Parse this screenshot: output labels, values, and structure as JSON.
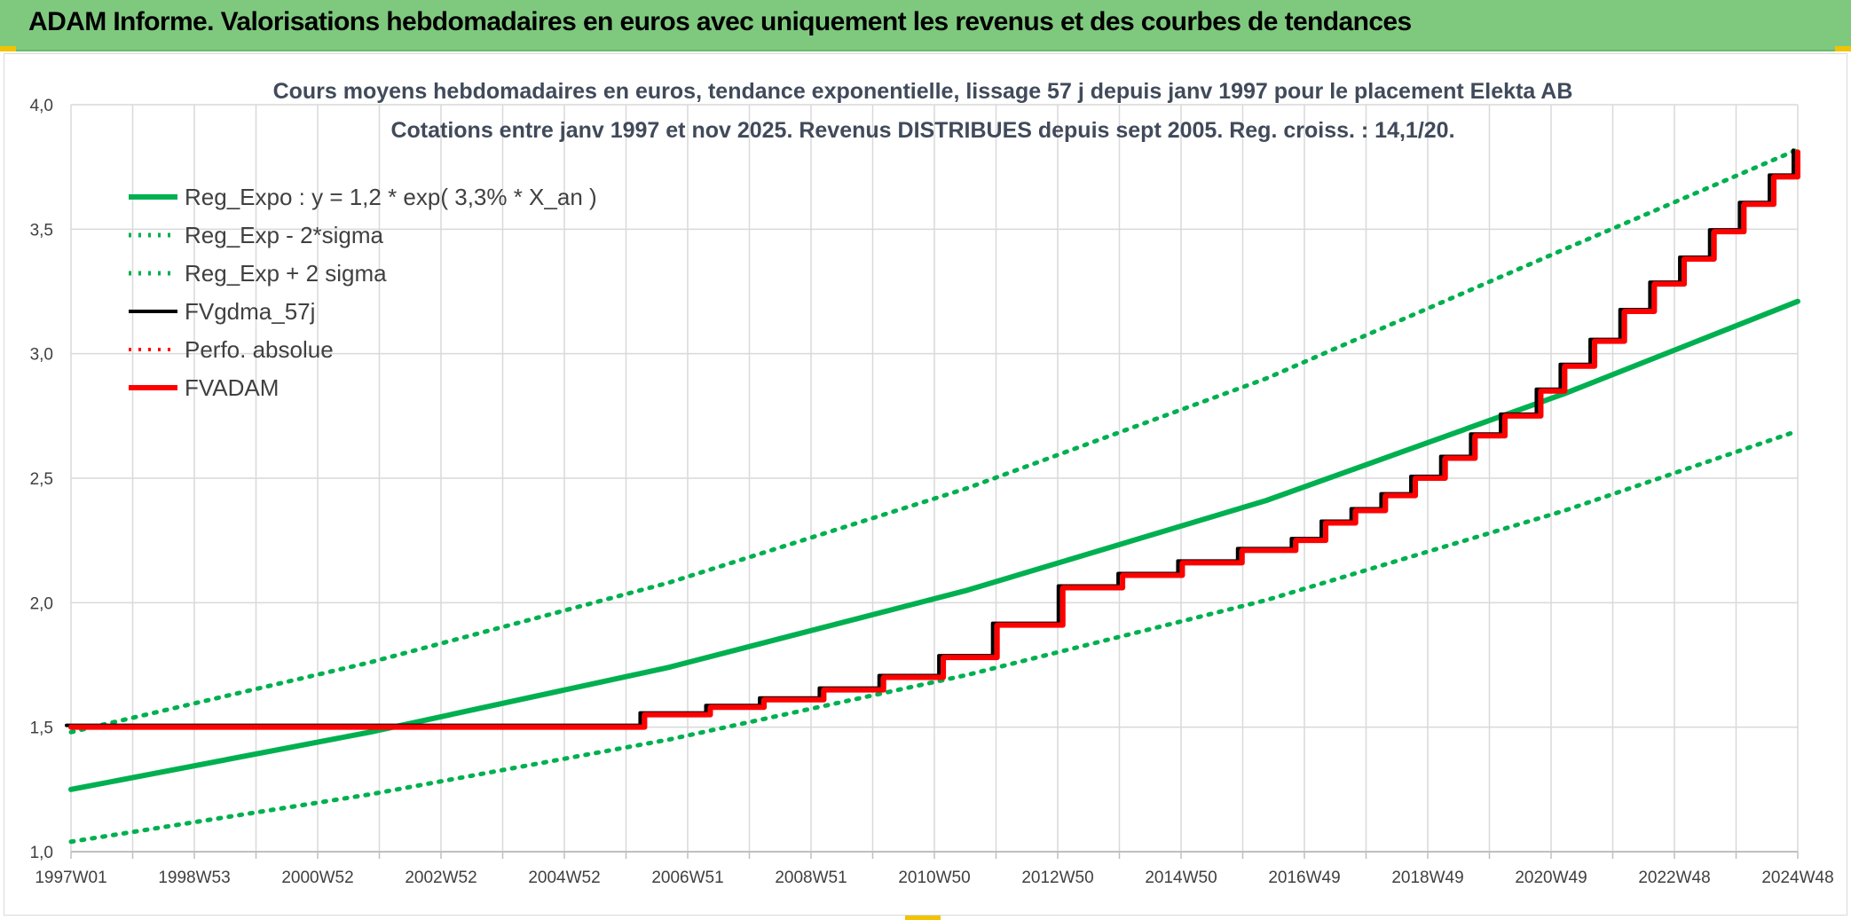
{
  "banner": {
    "title": "ADAM Informe. Valorisations hebdomadaires en euros avec uniquement les revenus et des courbes de tendances",
    "color": "#7fc97f"
  },
  "chart_data": {
    "type": "line",
    "title": "Cours moyens hebdomadaires en euros, tendance exponentielle, lissage 57 j depuis janv 1997 pour le placement Elekta AB",
    "subtitle": "Cotations entre janv 1997 et nov 2025. Revenus DISTRIBUES depuis sept 2005. Reg. croiss. : 14,1/20.",
    "xlabel": "",
    "ylabel": "",
    "x_tick_labels": [
      "1997W01",
      "1998W53",
      "2000W52",
      "2002W52",
      "2004W52",
      "2006W51",
      "2008W51",
      "2010W50",
      "2012W50",
      "2014W50",
      "2016W49",
      "2018W49",
      "2020W49",
      "2022W48",
      "2024W48"
    ],
    "x_range": [
      "1997W01",
      "2025W47"
    ],
    "ylim": [
      1.0,
      4.0
    ],
    "y_ticks": [
      "1,0",
      "1,5",
      "2,0",
      "2,5",
      "3,0",
      "3,5",
      "4,0"
    ],
    "grid": true,
    "legend_position": "top-left",
    "series": [
      {
        "name": "Reg_Expo : y = 1,2 * exp( 3,3% *  X_an )",
        "color": "#00b050",
        "style": "solid",
        "x": [
          1997.0,
          2002.0,
          2007.0,
          2012.0,
          2017.0,
          2022.0,
          2025.9
        ],
        "y": [
          1.25,
          1.48,
          1.74,
          2.05,
          2.41,
          2.84,
          3.21
        ]
      },
      {
        "name": "Reg_Exp - 2*sigma",
        "color": "#00b050",
        "style": "dotted",
        "x": [
          1997.0,
          2002.0,
          2007.0,
          2012.0,
          2017.0,
          2022.0,
          2025.9
        ],
        "y": [
          1.04,
          1.23,
          1.45,
          1.71,
          2.01,
          2.37,
          2.69
        ]
      },
      {
        "name": "Reg_Exp + 2 sigma",
        "color": "#00b050",
        "style": "dotted",
        "x": [
          1997.0,
          2002.0,
          2007.0,
          2012.0,
          2017.0,
          2022.0,
          2025.9
        ],
        "y": [
          1.48,
          1.76,
          2.08,
          2.46,
          2.9,
          3.42,
          3.82
        ]
      },
      {
        "name": "FVgdma_57j",
        "color": "#000000",
        "style": "solid",
        "x": [
          1997.0,
          2005.7,
          2006.6,
          2007.7,
          2008.6,
          2009.6,
          2010.6,
          2011.6,
          2012.5,
          2013.6,
          2014.6,
          2015.6,
          2016.6,
          2017.5,
          2018.0,
          2018.5,
          2019.0,
          2019.5,
          2020.0,
          2020.5,
          2021.0,
          2021.6,
          2022.0,
          2022.5,
          2023.0,
          2023.5,
          2024.0,
          2024.5,
          2025.0,
          2025.5,
          2025.9
        ],
        "y": [
          1.5,
          1.5,
          1.55,
          1.58,
          1.61,
          1.65,
          1.7,
          1.78,
          1.91,
          2.06,
          2.11,
          2.16,
          2.21,
          2.25,
          2.32,
          2.37,
          2.43,
          2.5,
          2.58,
          2.67,
          2.75,
          2.85,
          2.95,
          3.05,
          3.17,
          3.28,
          3.38,
          3.49,
          3.6,
          3.71,
          3.81
        ]
      },
      {
        "name": "Perfo. absolue",
        "color": "#ff0000",
        "style": "dotted",
        "x": [],
        "y": []
      },
      {
        "name": "FVADAM",
        "color": "#ff0000",
        "style": "solid",
        "x": [
          1997.0,
          2005.7,
          2006.6,
          2007.7,
          2008.6,
          2009.6,
          2010.6,
          2011.6,
          2012.5,
          2013.6,
          2014.6,
          2015.6,
          2016.6,
          2017.5,
          2018.0,
          2018.5,
          2019.0,
          2019.5,
          2020.0,
          2020.5,
          2021.0,
          2021.6,
          2022.0,
          2022.5,
          2023.0,
          2023.5,
          2024.0,
          2024.5,
          2025.0,
          2025.5,
          2025.9
        ],
        "y": [
          1.5,
          1.5,
          1.55,
          1.58,
          1.61,
          1.65,
          1.7,
          1.78,
          1.91,
          2.06,
          2.11,
          2.16,
          2.21,
          2.25,
          2.32,
          2.37,
          2.43,
          2.5,
          2.58,
          2.67,
          2.75,
          2.85,
          2.95,
          3.05,
          3.17,
          3.28,
          3.38,
          3.49,
          3.6,
          3.71,
          3.81
        ]
      }
    ]
  }
}
